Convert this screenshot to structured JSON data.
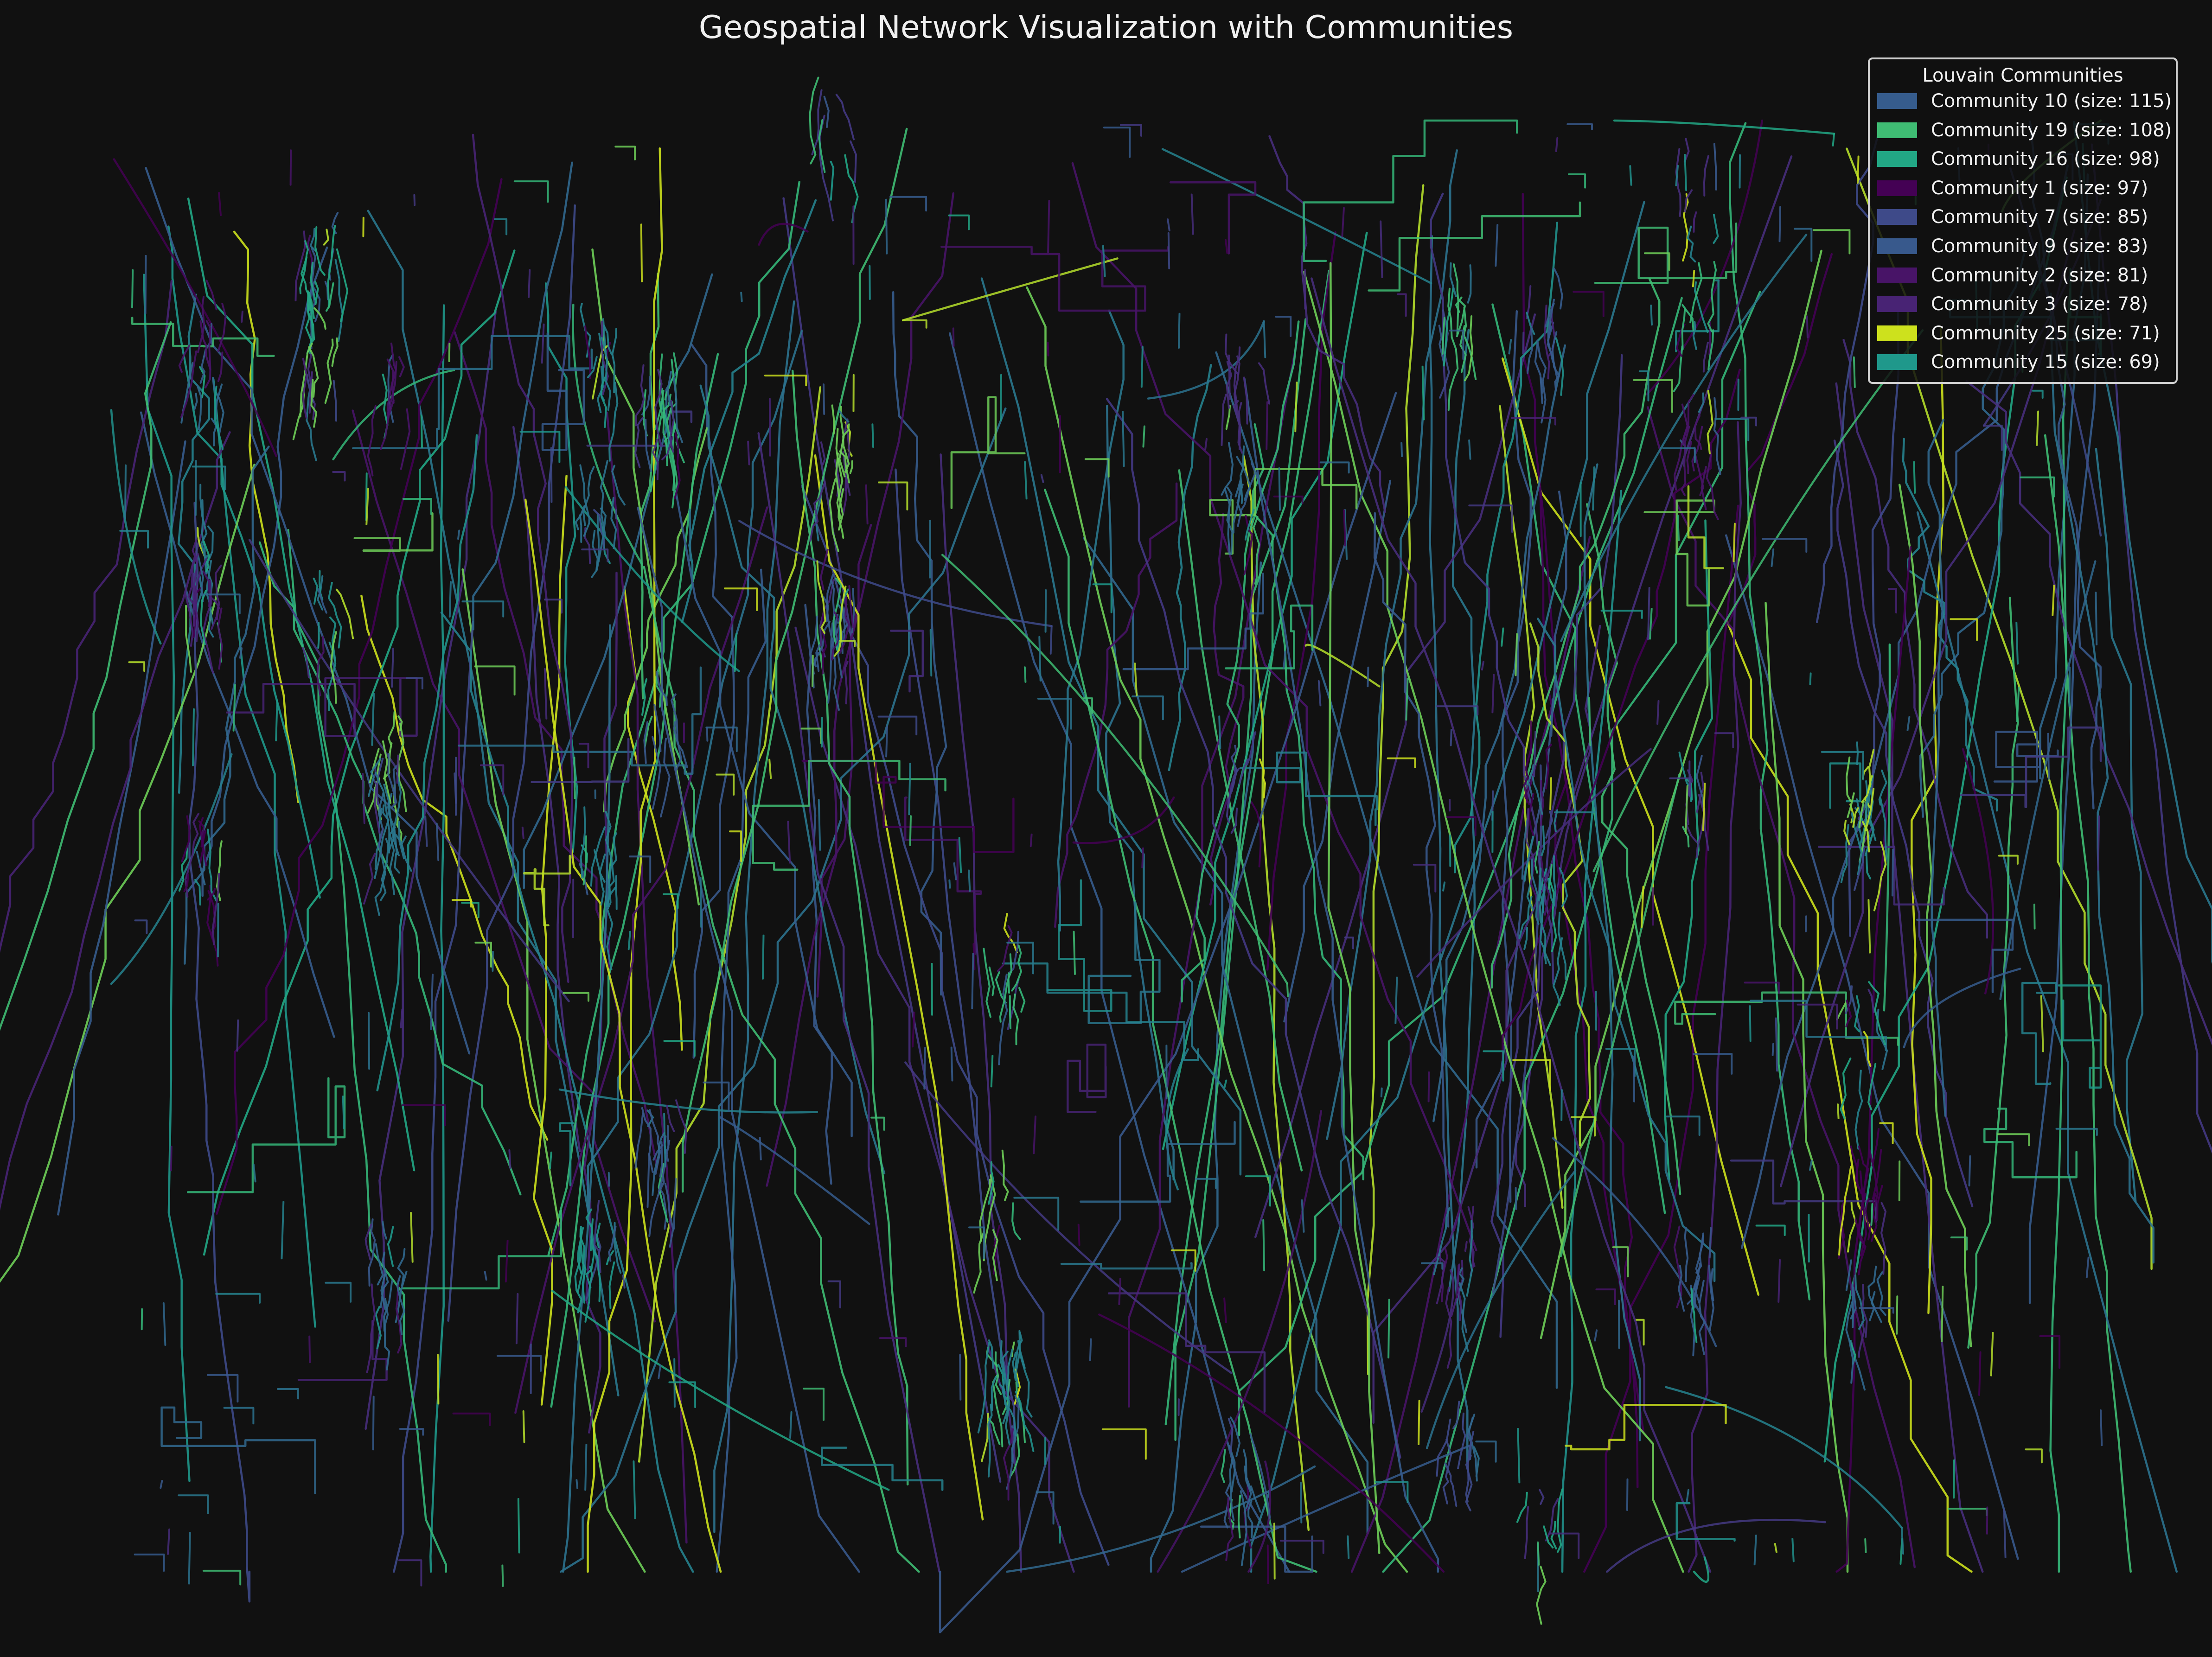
{
  "chart_data": {
    "type": "network",
    "title": "Geospatial Network Visualization with Communities",
    "xlabel": "",
    "ylabel": "",
    "axes_visible": false,
    "grid": false,
    "background_color": "#111111",
    "legend": {
      "title": "Louvain Communities",
      "placement": "top-right",
      "entries": [
        {
          "name": "Community 10 (size: 115)",
          "community": 10,
          "size": 115,
          "color": "#365c8d"
        },
        {
          "name": "Community 19 (size: 108)",
          "community": 19,
          "size": 108,
          "color": "#3fbc73"
        },
        {
          "name": "Community 16 (size: 98)",
          "community": 16,
          "size": 98,
          "color": "#22a785"
        },
        {
          "name": "Community 1 (size: 97)",
          "community": 1,
          "size": 97,
          "color": "#440154"
        },
        {
          "name": "Community 7 (size: 85)",
          "community": 7,
          "size": 85,
          "color": "#3e4a89"
        },
        {
          "name": "Community 9 (size: 83)",
          "community": 9,
          "size": 83,
          "color": "#38598c"
        },
        {
          "name": "Community 2 (size: 81)",
          "community": 2,
          "size": 81,
          "color": "#481467"
        },
        {
          "name": "Community 3 (size: 78)",
          "community": 3,
          "size": 78,
          "color": "#482374"
        },
        {
          "name": "Community 25 (size: 71)",
          "community": 25,
          "size": 71,
          "color": "#cde11d"
        },
        {
          "name": "Community 15 (size: 69)",
          "community": 15,
          "size": 69,
          "color": "#1f988b"
        }
      ]
    }
  }
}
